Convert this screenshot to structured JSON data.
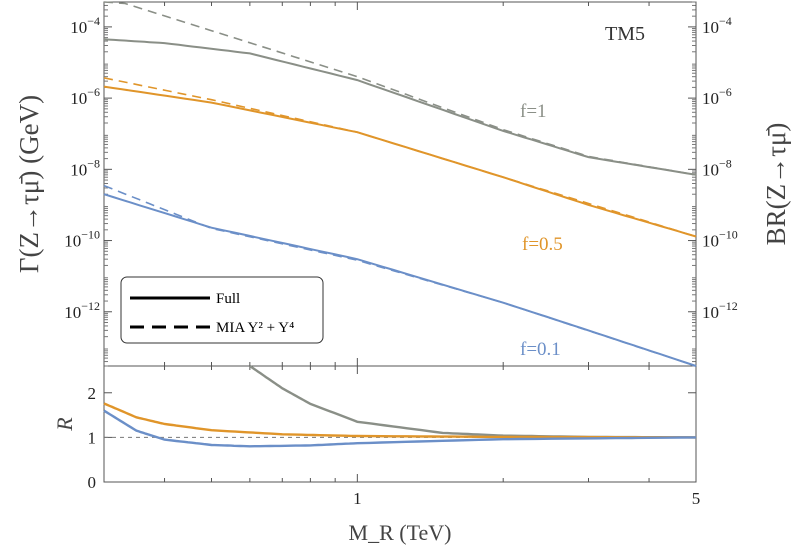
{
  "chart_data": [
    {
      "type": "line",
      "panel": "top",
      "title": "TM5",
      "ylabel": "Γ(Z→τμ̄) (GeV)",
      "ylabel_right": "BR(Z→τμ̄)",
      "scale": "log-log",
      "xlim": [
        0.3,
        5
      ],
      "ylim": [
        3e-14,
        0.0005
      ],
      "y_ticks_left": [
        "10^-4",
        "10^-6",
        "10^-8",
        "10^-10",
        "10^-12"
      ],
      "y_ticks_right": [
        "10^-4",
        "10^-6",
        "10^-8",
        "10^-10",
        "10^-12"
      ],
      "legend": {
        "position": "bottom-left",
        "entries": [
          "Full",
          "MIA Y^2 + Y^4"
        ]
      },
      "series": [
        {
          "name": "f=1",
          "style": "solid",
          "color": "#8a8f87",
          "points": [
            [
              0.3,
              4.5e-05
            ],
            [
              0.4,
              3.5e-05
            ],
            [
              0.6,
              1.8e-05
            ],
            [
              1,
              3.2e-06
            ],
            [
              2,
              1.2e-07
            ],
            [
              3,
              2.2e-08
            ],
            [
              5,
              7e-09
            ]
          ]
        },
        {
          "name": "f=1",
          "style": "dashed",
          "color": "#8a8f87",
          "points": [
            [
              0.3,
              0.0007
            ],
            [
              1,
              4e-06
            ],
            [
              2,
              1.3e-07
            ],
            [
              3,
              2.3e-08
            ],
            [
              5,
              7e-09
            ]
          ]
        },
        {
          "name": "f=0.5",
          "style": "solid",
          "color": "#e0952a",
          "points": [
            [
              0.3,
              2.1e-06
            ],
            [
              0.5,
              7.5e-07
            ],
            [
              1,
              1.1e-07
            ],
            [
              2,
              6e-09
            ],
            [
              3,
              1e-09
            ],
            [
              5,
              1.3e-10
            ]
          ]
        },
        {
          "name": "f=0.5",
          "style": "dashed",
          "color": "#e0952a",
          "points": [
            [
              0.3,
              3.7e-06
            ],
            [
              0.5,
              9e-07
            ],
            [
              1,
              1.1e-07
            ],
            [
              2,
              6e-09
            ],
            [
              5,
              1.3e-10
            ]
          ]
        },
        {
          "name": "f=0.1",
          "style": "solid",
          "color": "#6b8fc8",
          "points": [
            [
              0.3,
              2e-09
            ],
            [
              0.5,
              2.3e-10
            ],
            [
              1,
              3e-11
            ],
            [
              2,
              1.8e-12
            ],
            [
              3,
              3e-13
            ],
            [
              5,
              3e-14
            ]
          ]
        },
        {
          "name": "f=0.1",
          "style": "dashed",
          "color": "#6b8fc8",
          "points": [
            [
              0.3,
              3.5e-09
            ],
            [
              0.5,
              2.2e-10
            ],
            [
              1,
              2.8e-11
            ],
            [
              2,
              1.8e-12
            ],
            [
              5,
              3e-14
            ]
          ]
        }
      ]
    },
    {
      "type": "line",
      "panel": "bottom",
      "xlabel": "M_R (TeV)",
      "ylabel": "R",
      "scale": "log-x",
      "xlim": [
        0.3,
        5
      ],
      "ylim": [
        0,
        2.6
      ],
      "x_ticks": [
        "1",
        "5"
      ],
      "y_ticks": [
        "0",
        "1",
        "2"
      ],
      "reference_line": 1,
      "series": [
        {
          "name": "f=1",
          "color": "#8a8f87",
          "points": [
            [
              0.6,
              2.6
            ],
            [
              0.7,
              2.1
            ],
            [
              0.8,
              1.75
            ],
            [
              1,
              1.35
            ],
            [
              1.5,
              1.1
            ],
            [
              2,
              1.04
            ],
            [
              3,
              1.01
            ],
            [
              5,
              1.0
            ]
          ]
        },
        {
          "name": "f=0.5",
          "color": "#e0952a",
          "points": [
            [
              0.3,
              1.76
            ],
            [
              0.35,
              1.45
            ],
            [
              0.4,
              1.3
            ],
            [
              0.5,
              1.16
            ],
            [
              0.7,
              1.07
            ],
            [
              1,
              1.03
            ],
            [
              2,
              1.01
            ],
            [
              5,
              1.0
            ]
          ]
        },
        {
          "name": "f=0.1",
          "color": "#6b8fc8",
          "points": [
            [
              0.3,
              1.6
            ],
            [
              0.35,
              1.15
            ],
            [
              0.4,
              0.95
            ],
            [
              0.5,
              0.83
            ],
            [
              0.6,
              0.8
            ],
            [
              0.8,
              0.82
            ],
            [
              1,
              0.87
            ],
            [
              2,
              0.96
            ],
            [
              5,
              1.0
            ]
          ]
        }
      ]
    }
  ],
  "labels": {
    "title": "TM5",
    "f1": "f=1",
    "f05": "f=0.5",
    "f01": "f=0.1",
    "legend_full": "Full",
    "legend_mia": "MIA Y² + Y⁴",
    "ylabel_left": "Γ(Z→τμ̄) (GeV)",
    "ylabel_right": "BR(Z→τμ̄)",
    "ylabel_bottom": "R",
    "xlabel": "M_R (TeV)"
  },
  "colors": {
    "gray": "#8a8f87",
    "orange": "#e0952a",
    "blue": "#6b8fc8",
    "frame": "#555555"
  }
}
